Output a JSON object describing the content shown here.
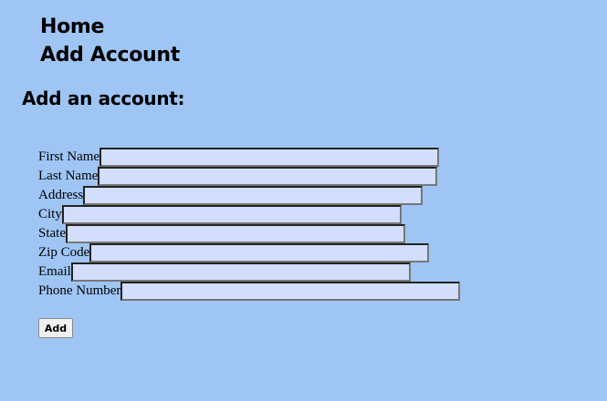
{
  "nav": {
    "items": [
      {
        "label": "Home"
      },
      {
        "label": "Add Account"
      }
    ]
  },
  "page": {
    "heading": "Add an account:"
  },
  "form": {
    "fields": [
      {
        "label": "First Name",
        "value": ""
      },
      {
        "label": "Last Name",
        "value": ""
      },
      {
        "label": "Address",
        "value": ""
      },
      {
        "label": "City",
        "value": ""
      },
      {
        "label": "State",
        "value": ""
      },
      {
        "label": "Zip Code",
        "value": ""
      },
      {
        "label": "Email",
        "value": ""
      },
      {
        "label": "Phone Number",
        "value": ""
      }
    ],
    "submit_label": "Add"
  },
  "colors": {
    "background": "#9fc5f5",
    "input_background": "#d2defc"
  }
}
